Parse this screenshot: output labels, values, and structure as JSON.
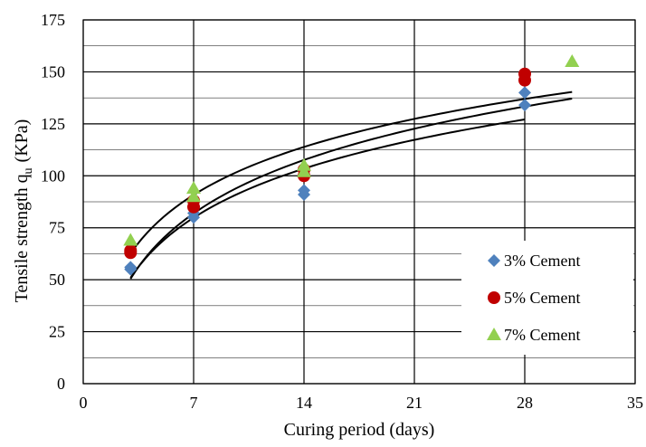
{
  "chart_data": {
    "type": "scatter",
    "xlabel": "Curing period (days)",
    "ylabel": "Tensile strength q",
    "ylabel_sub": "u",
    "ylabel_unit": "(KPa)",
    "xlim": [
      0,
      35
    ],
    "ylim": [
      0,
      175
    ],
    "x_ticks": [
      0,
      7,
      14,
      21,
      28,
      35
    ],
    "x_tick_labels": [
      "0",
      "7",
      "14",
      "21",
      "28",
      "35"
    ],
    "y_ticks": [
      0,
      25,
      50,
      75,
      100,
      125,
      150,
      175
    ],
    "y_tick_labels": [
      "0",
      "25",
      "50",
      "75",
      "100",
      "125",
      "150",
      "175"
    ],
    "y_minor_gridlines": [
      12.5,
      37.5,
      62.5,
      87.5,
      112.5,
      137.5,
      162.5
    ],
    "grid": true,
    "legend_position": "bottom-right",
    "series": [
      {
        "name": "3% Cement",
        "marker": "diamond",
        "color": "#4F81BD",
        "points": [
          [
            3,
            55
          ],
          [
            3,
            56
          ],
          [
            7,
            80
          ],
          [
            7,
            82
          ],
          [
            14,
            91
          ],
          [
            14,
            93
          ],
          [
            28,
            134
          ],
          [
            28,
            140
          ]
        ]
      },
      {
        "name": "5% Cement",
        "marker": "circle",
        "color": "#C00000",
        "points": [
          [
            3,
            63
          ],
          [
            3,
            64
          ],
          [
            7,
            85
          ],
          [
            7,
            88
          ],
          [
            14,
            100
          ],
          [
            14,
            103
          ],
          [
            28,
            146
          ],
          [
            28,
            149
          ]
        ]
      },
      {
        "name": "7% Cement",
        "marker": "triangle",
        "color": "#92D050",
        "points": [
          [
            3,
            69
          ],
          [
            7,
            90
          ],
          [
            7,
            94
          ],
          [
            14,
            102
          ],
          [
            14,
            105
          ],
          [
            31,
            155
          ]
        ]
      }
    ],
    "trendlines": [
      {
        "type": "logarithmic",
        "color": "#000000",
        "x_range": [
          3,
          28
        ],
        "a": 34.1,
        "b": 13.47
      },
      {
        "type": "logarithmic",
        "color": "#000000",
        "x_range": [
          3,
          31
        ],
        "a": 37.1,
        "b": 9.7
      },
      {
        "type": "logarithmic",
        "color": "#000000",
        "x_range": [
          3,
          31
        ],
        "a": 33.3,
        "b": 26.0
      }
    ]
  }
}
